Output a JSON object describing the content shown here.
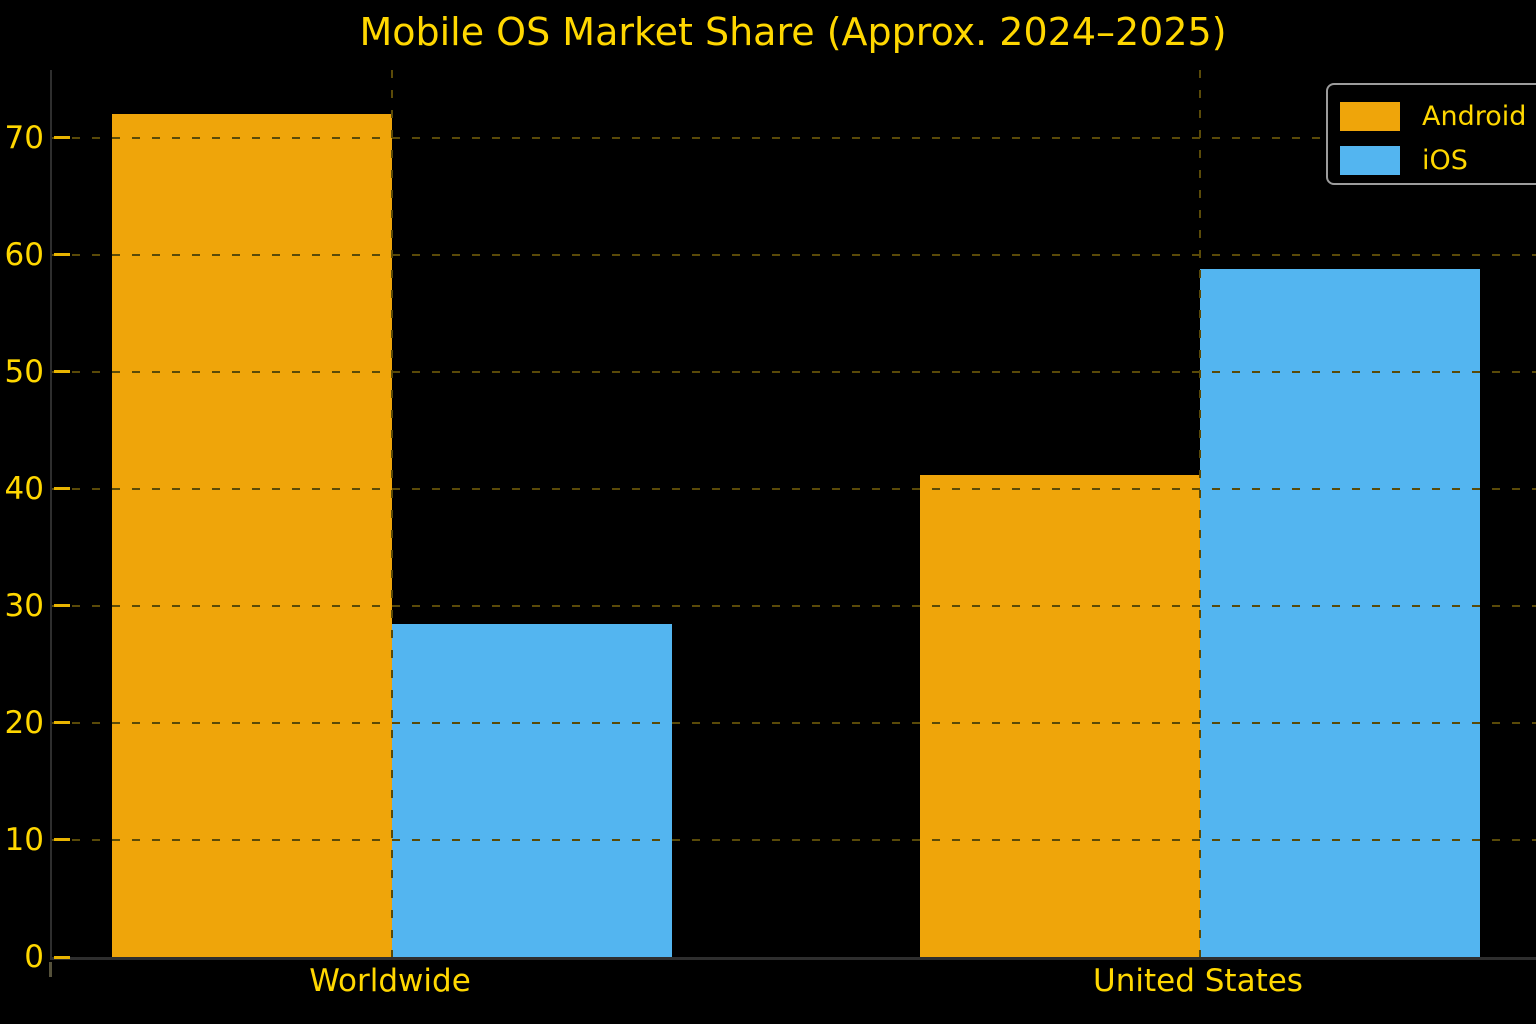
{
  "chart_data": {
    "type": "bar",
    "title": "Mobile OS Market Share (Approx. 2024–2025)",
    "categories": [
      "Worldwide",
      "United States"
    ],
    "series": [
      {
        "name": "Android",
        "color": "#EFA50A",
        "values": [
          72,
          41.2
        ]
      },
      {
        "name": "iOS",
        "color": "#53B5F0",
        "values": [
          28.5,
          58.8
        ]
      }
    ],
    "xlabel": "",
    "ylabel": "",
    "ylim": [
      0,
      75.8
    ],
    "yticks": [
      0,
      10,
      20,
      30,
      40,
      50,
      60,
      70
    ],
    "grid": true,
    "grid_style": "dashed",
    "legend_position": "upper-right",
    "colors": {
      "background": "#000000",
      "text": "#FFD700",
      "gridline": "#5A4A08",
      "tick_mark": "#E8B400",
      "spine": "#2E2E2E",
      "legend_border": "#9C9C9C"
    }
  }
}
